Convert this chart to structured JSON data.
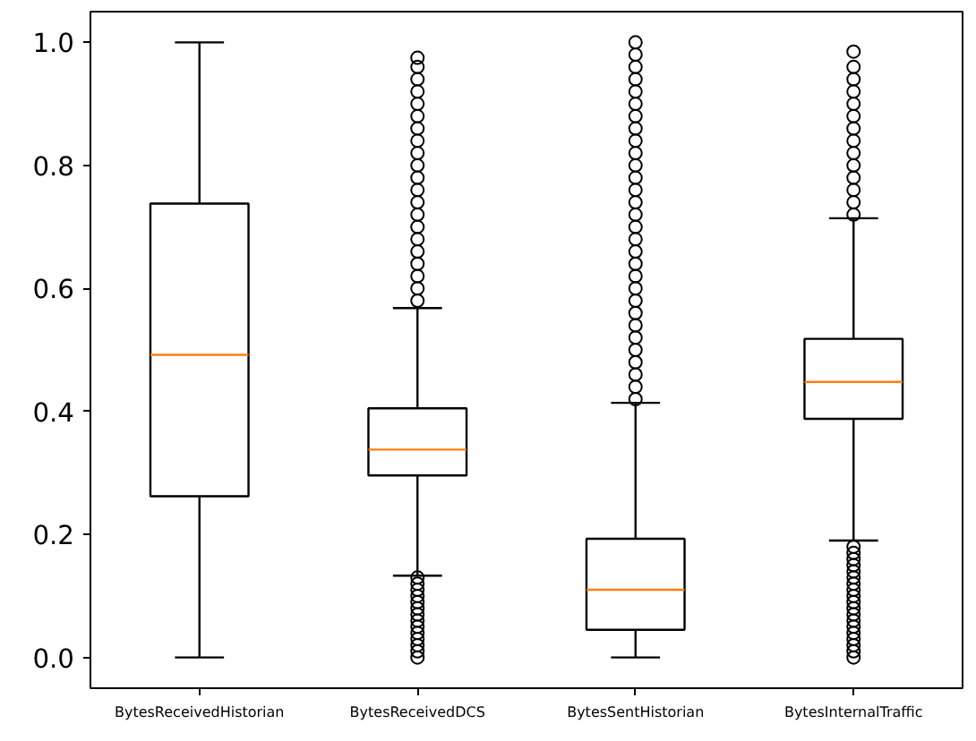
{
  "chart_data": {
    "type": "box",
    "categories": [
      "BytesReceivedHistorian",
      "BytesReceivedDCS",
      "BytesSentHistorian",
      "BytesInternalTraffic"
    ],
    "ylim": [
      -0.05,
      1.05
    ],
    "yticks": [
      {
        "value": 0,
        "label": "0.0"
      },
      {
        "value": 0.2,
        "label": "0.2"
      },
      {
        "value": 0.4,
        "label": "0.4"
      },
      {
        "value": 0.6,
        "label": "0.6"
      },
      {
        "value": 0.8,
        "label": "0.8"
      },
      {
        "value": 1,
        "label": "1.0"
      }
    ],
    "grid": false,
    "marker": "circle",
    "series": [
      {
        "color": "#000000",
        "boxes": [
          {
            "low": 0,
            "q1": 0.262,
            "median": 0.492,
            "q3": 0.738,
            "high": 1.0
          },
          {
            "low": 0.133,
            "q1": 0.296,
            "median": 0.338,
            "q3": 0.405,
            "high": 0.568,
            "outliers": [
              0.0,
              0.01,
              0.02,
              0.03,
              0.04,
              0.05,
              0.06,
              0.07,
              0.08,
              0.09,
              0.1,
              0.11,
              0.12,
              0.13,
              0.58,
              0.6,
              0.62,
              0.64,
              0.66,
              0.68,
              0.7,
              0.72,
              0.74,
              0.76,
              0.78,
              0.8,
              0.82,
              0.84,
              0.86,
              0.88,
              0.9,
              0.92,
              0.94,
              0.96,
              0.975
            ]
          },
          {
            "low": 0,
            "q1": 0.045,
            "median": 0.11,
            "q3": 0.193,
            "high": 0.414,
            "outliers": [
              0.42,
              0.44,
              0.46,
              0.48,
              0.5,
              0.52,
              0.54,
              0.56,
              0.58,
              0.6,
              0.62,
              0.64,
              0.66,
              0.68,
              0.7,
              0.72,
              0.74,
              0.76,
              0.78,
              0.8,
              0.82,
              0.84,
              0.86,
              0.88,
              0.9,
              0.92,
              0.94,
              0.96,
              0.98,
              1.0
            ]
          },
          {
            "low": 0.19,
            "q1": 0.388,
            "median": 0.448,
            "q3": 0.518,
            "high": 0.714,
            "outliers": [
              0.0,
              0.01,
              0.02,
              0.03,
              0.04,
              0.05,
              0.06,
              0.07,
              0.08,
              0.09,
              0.1,
              0.11,
              0.12,
              0.13,
              0.14,
              0.15,
              0.16,
              0.17,
              0.18,
              0.72,
              0.74,
              0.76,
              0.78,
              0.8,
              0.82,
              0.84,
              0.86,
              0.88,
              0.9,
              0.92,
              0.94,
              0.96,
              0.985
            ]
          }
        ]
      }
    ]
  }
}
